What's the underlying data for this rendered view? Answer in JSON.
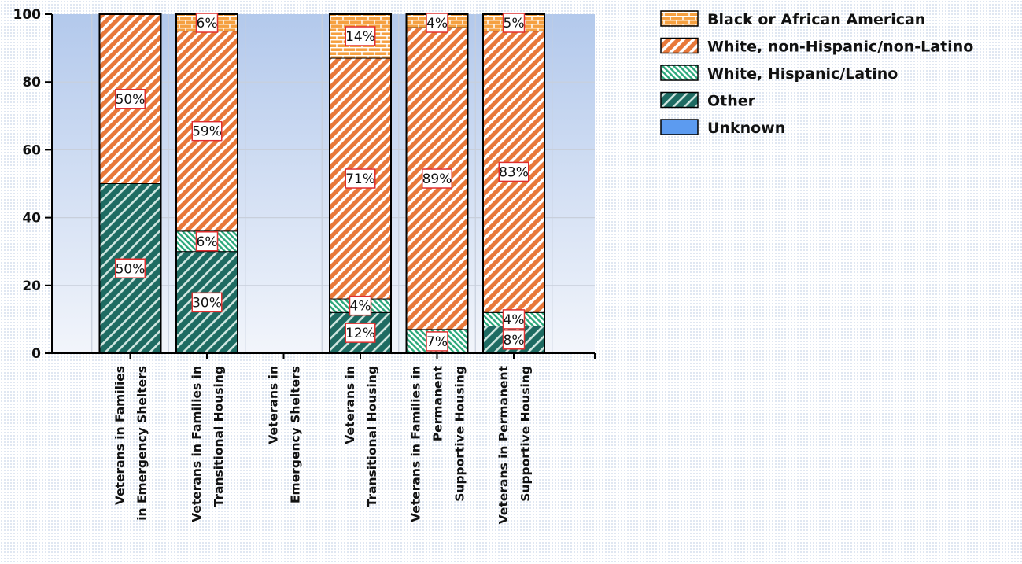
{
  "chart_data": {
    "type": "bar",
    "stacked": true,
    "categories": [
      [
        "Veterans in Families",
        "in Emergency Shelters"
      ],
      [
        "Veterans in Families in",
        "Transitional Housing"
      ],
      [
        "Veterans in",
        "Emergency Shelters"
      ],
      [
        "Veterans in",
        "Transitional Housing"
      ],
      [
        "Veterans in Families in",
        "Permanent",
        "Supportive Housing"
      ],
      [
        "Veterans in Permanent",
        "Supportive Housing"
      ]
    ],
    "ylim": [
      0,
      100
    ],
    "yticks": [
      0,
      20,
      40,
      60,
      80,
      100
    ],
    "grid": true,
    "legend_position": "top-right",
    "series": [
      {
        "name": "Other",
        "color": "#1e6b62",
        "values": [
          50,
          30,
          0,
          12,
          0,
          8
        ]
      },
      {
        "name": "White, Hispanic/Latino",
        "color": "#2aa87a",
        "values": [
          0,
          6,
          0,
          4,
          7,
          4
        ]
      },
      {
        "name": "White, non-Hispanic/non-Latino",
        "color": "#e8783a",
        "values": [
          50,
          59,
          0,
          71,
          89,
          83
        ]
      },
      {
        "name": "Black or African American",
        "color": "#f5a040",
        "values": [
          0,
          6,
          0,
          14,
          4,
          5
        ]
      },
      {
        "name": "Unknown",
        "color": "#5c9bf0",
        "values": [
          0,
          0,
          0,
          0,
          0,
          0
        ]
      }
    ],
    "legend_order": [
      "Black or African American",
      "White, non-Hispanic/non-Latino",
      "White, Hispanic/Latino",
      "Other",
      "Unknown"
    ]
  }
}
